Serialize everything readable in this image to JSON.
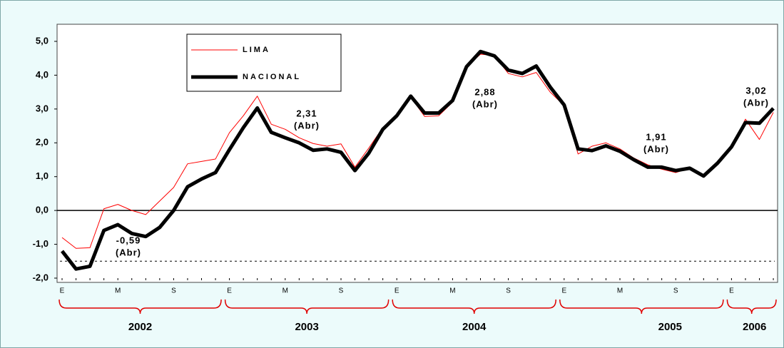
{
  "chart_data": {
    "type": "line",
    "categories": [
      "E",
      null,
      null,
      null,
      "M",
      null,
      null,
      null,
      "S",
      null,
      null,
      null,
      "E",
      null,
      null,
      null,
      "M",
      null,
      null,
      null,
      "S",
      null,
      null,
      null,
      "E",
      null,
      null,
      null,
      "M",
      null,
      null,
      null,
      "S",
      null,
      null,
      null,
      "E",
      null,
      null,
      null,
      "M",
      null,
      null,
      null,
      "S",
      null,
      null,
      null,
      "E",
      null,
      null,
      null
    ],
    "series": [
      {
        "name": "LIMA",
        "color": "#ff0000",
        "width": 1,
        "values": [
          -0.8,
          -1.12,
          -1.1,
          0.05,
          0.18,
          0.0,
          -0.12,
          0.28,
          0.68,
          1.38,
          1.45,
          1.52,
          2.3,
          2.8,
          3.38,
          2.55,
          2.4,
          2.15,
          1.98,
          1.9,
          1.97,
          1.28,
          1.85,
          2.45,
          2.85,
          3.35,
          2.78,
          2.8,
          3.2,
          4.25,
          4.62,
          4.58,
          4.05,
          3.95,
          4.08,
          3.5,
          3.1,
          1.67,
          1.9,
          2.0,
          1.82,
          1.55,
          1.35,
          1.22,
          1.12,
          1.25,
          1.02,
          1.4,
          1.88,
          2.7,
          2.1,
          2.9
        ]
      },
      {
        "name": "NACIONAL",
        "color": "#000000",
        "width": 5,
        "values": [
          -1.2,
          -1.73,
          -1.65,
          -0.59,
          -0.42,
          -0.68,
          -0.77,
          -0.5,
          0.0,
          0.7,
          0.93,
          1.12,
          1.8,
          2.45,
          3.03,
          2.31,
          2.15,
          2.0,
          1.78,
          1.82,
          1.72,
          1.18,
          1.7,
          2.4,
          2.8,
          3.38,
          2.88,
          2.88,
          3.25,
          4.25,
          4.7,
          4.57,
          4.15,
          4.05,
          4.27,
          3.65,
          3.12,
          1.82,
          1.77,
          1.91,
          1.75,
          1.5,
          1.28,
          1.28,
          1.18,
          1.25,
          1.02,
          1.4,
          1.88,
          2.6,
          2.58,
          3.02
        ]
      }
    ],
    "ylim": [
      -2,
      5
    ],
    "yticks": [
      {
        "value": -2,
        "label": "-2,0"
      },
      {
        "value": -1,
        "label": "-1,0"
      },
      {
        "value": 0,
        "label": "0,0"
      },
      {
        "value": 1,
        "label": "1,0"
      },
      {
        "value": 2,
        "label": "2,0"
      },
      {
        "value": 3,
        "label": "3,0"
      },
      {
        "value": 4,
        "label": "4,0"
      },
      {
        "value": 5,
        "label": "5,0"
      }
    ],
    "reference_line": -1.5,
    "years": [
      {
        "label": "2002",
        "months": 12
      },
      {
        "label": "2003",
        "months": 12
      },
      {
        "label": "2004",
        "months": 12
      },
      {
        "label": "2005",
        "months": 12
      },
      {
        "label": "2006",
        "months": 4
      }
    ],
    "annotations": [
      {
        "text": "-0,59",
        "note": "(Abr)"
      },
      {
        "text": "2,31",
        "note": "(Abr)"
      },
      {
        "text": "2,88",
        "note": "(Abr)"
      },
      {
        "text": "1,91",
        "note": "(Abr)"
      },
      {
        "text": "3,02",
        "note": "(Abr)"
      }
    ]
  }
}
